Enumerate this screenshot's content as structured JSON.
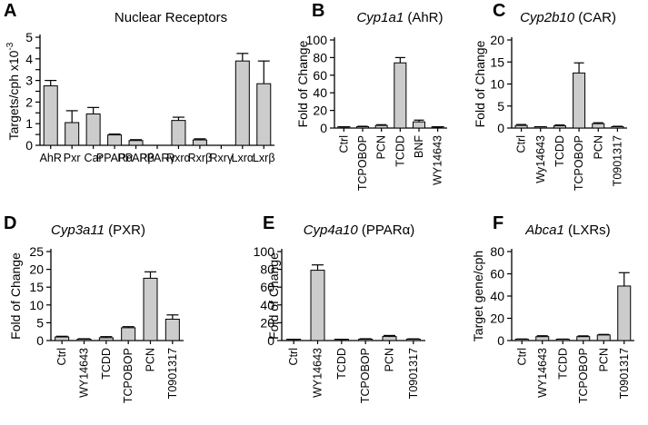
{
  "chart_data": [
    {
      "type": "bar",
      "panel_label": "A",
      "title": "Nuclear Receptors",
      "ylabel": "Targets/cph  x10",
      "ylabel_exponent": "-3",
      "ylim": [
        0,
        5
      ],
      "yticks": [
        0,
        0.5,
        1,
        1.5,
        2,
        2.5,
        3,
        3.5,
        4,
        4.5,
        5
      ],
      "ytick_labels": [
        "0",
        "",
        "1",
        "",
        "2",
        "",
        "3",
        "",
        "4",
        "",
        "5"
      ],
      "categories": [
        "AhR",
        "Pxr",
        "Car",
        "PPARα",
        "PPARβ",
        "PPARγ",
        "Rxrα",
        "Rxrβ",
        "Rxrγ",
        "Lxrα",
        "Lxrβ"
      ],
      "values": [
        2.75,
        1.05,
        1.45,
        0.48,
        0.22,
        0.0,
        1.15,
        0.25,
        0.0,
        3.9,
        2.85
      ],
      "errors": [
        0.25,
        0.55,
        0.3,
        0.04,
        0.04,
        0.0,
        0.15,
        0.05,
        0.0,
        0.35,
        1.05
      ],
      "bar_color": "#cccccc"
    },
    {
      "type": "bar",
      "panel_label": "B",
      "title_gene": "Cyp1a1",
      "title_rest": " (AhR)",
      "ylabel": "Fold of Change",
      "ylim": [
        0,
        100
      ],
      "yticks": [
        0,
        20,
        40,
        60,
        80,
        100
      ],
      "ytick_labels": [
        "0",
        "20",
        "40",
        "60",
        "80",
        "100"
      ],
      "categories": [
        "Ctrl",
        "TCPOBOP",
        "PCN",
        "TCDD",
        "BNF",
        "WY14643"
      ],
      "values": [
        1,
        1.5,
        3,
        74,
        7,
        0.8
      ],
      "errors": [
        0.3,
        0.5,
        0.8,
        6,
        2,
        0.3
      ],
      "bar_color": "#cccccc"
    },
    {
      "type": "bar",
      "panel_label": "C",
      "title_gene": "Cyp2b10",
      "title_rest": " (CAR)",
      "ylabel": "Fold of Change",
      "ylim": [
        0,
        20
      ],
      "yticks": [
        0,
        5,
        10,
        15,
        20
      ],
      "ytick_labels": [
        "0",
        "5",
        "10",
        "15",
        "20"
      ],
      "categories": [
        "Ctrl",
        "Wy14643",
        "TCDD",
        "TCPOBOP",
        "PCN",
        "T0901317"
      ],
      "values": [
        0.6,
        0.2,
        0.5,
        12.5,
        1.0,
        0.3
      ],
      "errors": [
        0.2,
        0.1,
        0.2,
        2.3,
        0.2,
        0.1
      ],
      "bar_color": "#cccccc"
    },
    {
      "type": "bar",
      "panel_label": "D",
      "title_gene": "Cyp3a11",
      "title_rest": " (PXR)",
      "ylabel": "Fold of Change",
      "ylim": [
        0,
        25
      ],
      "yticks": [
        0,
        5,
        10,
        15,
        20,
        25
      ],
      "ytick_labels": [
        "0",
        "5",
        "10",
        "15",
        "20",
        "25"
      ],
      "categories": [
        "Ctrl",
        "WY14643",
        "TCDD",
        "TCPOBOP",
        "PCN",
        "T0901317"
      ],
      "values": [
        1.0,
        0.4,
        0.8,
        3.6,
        17.5,
        6.0
      ],
      "errors": [
        0.2,
        0.1,
        0.3,
        0.3,
        1.8,
        1.2
      ],
      "bar_color": "#cccccc"
    },
    {
      "type": "bar",
      "panel_label": "E",
      "title_gene": "Cyp4a10",
      "title_rest": " (PPARα)",
      "ylabel": "Fold of Change",
      "ylim": [
        0,
        100
      ],
      "yticks": [
        0,
        20,
        40,
        60,
        80,
        100
      ],
      "ytick_labels": [
        "0",
        "20",
        "40",
        "60",
        "80",
        "100"
      ],
      "categories": [
        "Ctrl",
        "WY14643",
        "TCDD",
        "TCPOBOP",
        "PCN",
        "T0901317"
      ],
      "values": [
        1,
        79,
        1,
        1.5,
        4.5,
        1.5
      ],
      "errors": [
        0.3,
        6,
        0.3,
        0.5,
        1.2,
        0.4
      ],
      "bar_color": "#cccccc"
    },
    {
      "type": "bar",
      "panel_label": "F",
      "title_gene": "Abca1",
      "title_rest": " (LXRs)",
      "ylabel": "Target gene/cph",
      "ylim": [
        0,
        80
      ],
      "yticks": [
        0,
        20,
        40,
        60,
        80
      ],
      "ytick_labels": [
        "0",
        "20",
        "40",
        "60",
        "80"
      ],
      "categories": [
        "Ctrl",
        "WY14643",
        "TCDD",
        "TCPOBOP",
        "PCN",
        "T0901317"
      ],
      "values": [
        1,
        3.5,
        1,
        3.5,
        5,
        49
      ],
      "errors": [
        0.4,
        0.8,
        0.3,
        0.7,
        0.5,
        12
      ],
      "bar_color": "#cccccc"
    }
  ]
}
